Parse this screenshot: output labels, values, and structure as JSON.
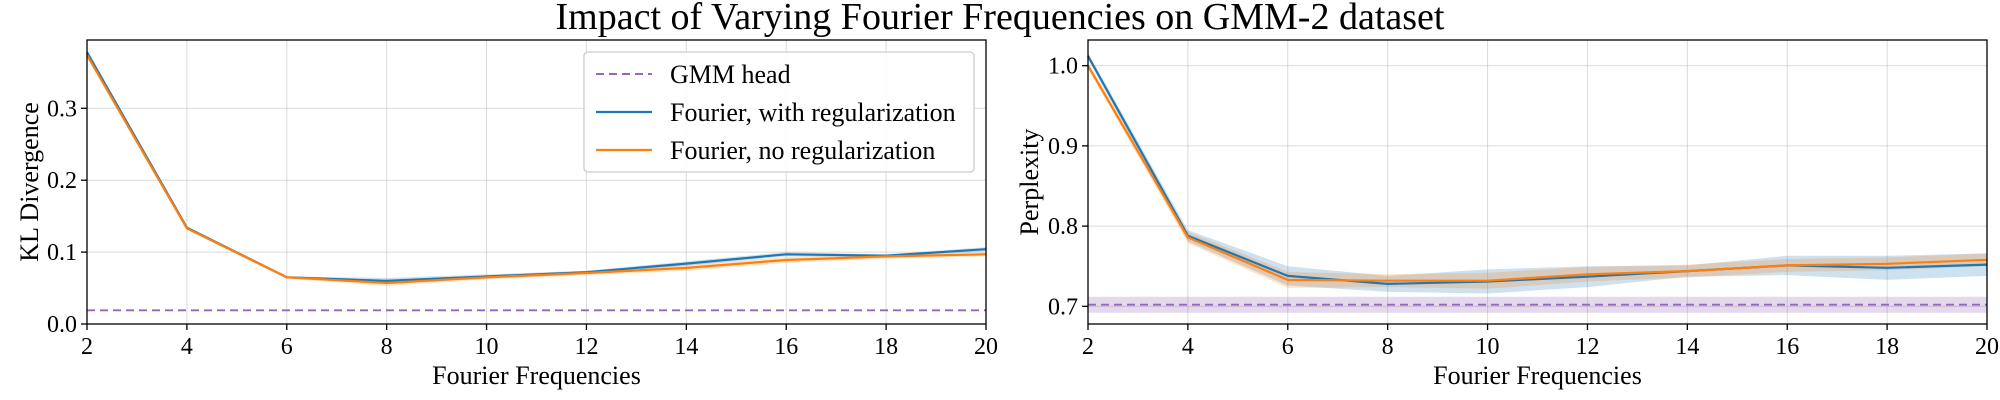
{
  "figure": {
    "title": "Impact of Varying Fourier Frequencies on GMM-2 dataset"
  },
  "chart_data": [
    {
      "type": "line",
      "title": "",
      "xlabel": "Fourier Frequencies",
      "ylabel": "KL Divergence",
      "x": [
        2,
        4,
        6,
        8,
        10,
        12,
        14,
        16,
        18,
        20
      ],
      "xlim": [
        2,
        20
      ],
      "ylim": [
        0,
        0.395
      ],
      "xticks": [
        2,
        4,
        6,
        8,
        10,
        12,
        14,
        16,
        18,
        20
      ],
      "yticks": [
        0.0,
        0.1,
        0.2,
        0.3
      ],
      "ytick_labels": [
        "0.0",
        "0.1",
        "0.2",
        "0.3"
      ],
      "grid": true,
      "legend": "top-right",
      "series": [
        {
          "name": "GMM head",
          "style": "dashed",
          "color": "#9467bd",
          "values": [
            0.019,
            0.019,
            0.019,
            0.019,
            0.019,
            0.019,
            0.019,
            0.019,
            0.019,
            0.019
          ]
        },
        {
          "name": "Fourier, with regularization",
          "style": "solid",
          "color": "#1f77b4",
          "values": [
            0.378,
            0.134,
            0.065,
            0.06,
            0.066,
            0.072,
            0.084,
            0.097,
            0.095,
            0.104
          ],
          "band": [
            [
              0.377,
              0.379
            ],
            [
              0.133,
              0.136
            ],
            [
              0.064,
              0.066
            ],
            [
              0.056,
              0.064
            ],
            [
              0.063,
              0.069
            ],
            [
              0.07,
              0.074
            ],
            [
              0.081,
              0.087
            ],
            [
              0.094,
              0.1
            ],
            [
              0.093,
              0.097
            ],
            [
              0.101,
              0.107
            ]
          ]
        },
        {
          "name": "Fourier, no regularization",
          "style": "solid",
          "color": "#ff7f0e",
          "values": [
            0.374,
            0.133,
            0.065,
            0.057,
            0.065,
            0.071,
            0.078,
            0.089,
            0.094,
            0.097
          ],
          "band": [
            [
              0.372,
              0.376
            ],
            [
              0.132,
              0.135
            ],
            [
              0.063,
              0.067
            ],
            [
              0.053,
              0.061
            ],
            [
              0.062,
              0.068
            ],
            [
              0.068,
              0.074
            ],
            [
              0.074,
              0.082
            ],
            [
              0.085,
              0.093
            ],
            [
              0.091,
              0.097
            ],
            [
              0.094,
              0.1
            ]
          ]
        }
      ]
    },
    {
      "type": "line",
      "title": "",
      "xlabel": "Fourier Frequencies",
      "ylabel": "Perplexity",
      "x": [
        2,
        4,
        6,
        8,
        10,
        12,
        14,
        16,
        18,
        20
      ],
      "xlim": [
        2,
        20
      ],
      "ylim": [
        0.678,
        1.032
      ],
      "xticks": [
        2,
        4,
        6,
        8,
        10,
        12,
        14,
        16,
        18,
        20
      ],
      "yticks": [
        0.7,
        0.8,
        0.9,
        1.0
      ],
      "ytick_labels": [
        "0.7",
        "0.8",
        "0.9",
        "1.0"
      ],
      "grid": true,
      "legend": "none",
      "series": [
        {
          "name": "GMM head",
          "style": "dashed",
          "color": "#9467bd",
          "values": [
            0.702,
            0.702,
            0.702,
            0.702,
            0.702,
            0.702,
            0.702,
            0.702,
            0.702,
            0.702
          ],
          "band": [
            [
              0.692,
              0.712
            ],
            [
              0.692,
              0.712
            ],
            [
              0.692,
              0.712
            ],
            [
              0.692,
              0.712
            ],
            [
              0.692,
              0.712
            ],
            [
              0.692,
              0.712
            ],
            [
              0.692,
              0.712
            ],
            [
              0.692,
              0.712
            ],
            [
              0.692,
              0.712
            ],
            [
              0.692,
              0.712
            ]
          ]
        },
        {
          "name": "Fourier, with regularization",
          "style": "solid",
          "color": "#1f77b4",
          "values": [
            1.012,
            0.788,
            0.738,
            0.728,
            0.731,
            0.737,
            0.744,
            0.751,
            0.748,
            0.752
          ],
          "band": [
            [
              1.008,
              1.016
            ],
            [
              0.781,
              0.795
            ],
            [
              0.726,
              0.75
            ],
            [
              0.718,
              0.738
            ],
            [
              0.716,
              0.746
            ],
            [
              0.724,
              0.75
            ],
            [
              0.737,
              0.751
            ],
            [
              0.739,
              0.763
            ],
            [
              0.733,
              0.763
            ],
            [
              0.738,
              0.766
            ]
          ]
        },
        {
          "name": "Fourier, no regularization",
          "style": "solid",
          "color": "#ff7f0e",
          "values": [
            1.0,
            0.786,
            0.733,
            0.732,
            0.732,
            0.74,
            0.744,
            0.751,
            0.753,
            0.758
          ],
          "band": [
            [
              0.996,
              1.004
            ],
            [
              0.779,
              0.793
            ],
            [
              0.723,
              0.743
            ],
            [
              0.724,
              0.74
            ],
            [
              0.722,
              0.742
            ],
            [
              0.731,
              0.749
            ],
            [
              0.736,
              0.752
            ],
            [
              0.743,
              0.759
            ],
            [
              0.745,
              0.761
            ],
            [
              0.75,
              0.766
            ]
          ]
        }
      ]
    }
  ]
}
